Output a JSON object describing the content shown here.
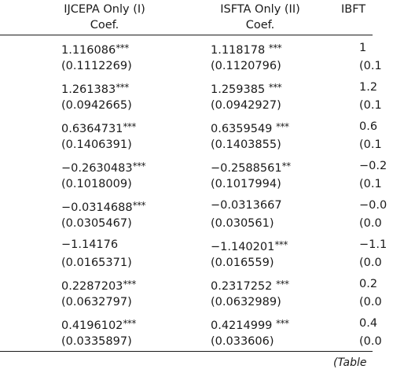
{
  "headers": [
    {
      "title": "IJCEPA Only (I)",
      "sub": "Coef."
    },
    {
      "title": "ISFTA Only (II)",
      "sub": "Coef."
    },
    {
      "title": "IBFT",
      "sub": ""
    }
  ],
  "rows": [
    [
      {
        "coef": "1.116086",
        "stars": "***",
        "se": "(0.1112269)"
      },
      {
        "coef": "1.118178 ",
        "stars": "***",
        "se": "(0.1120796)"
      },
      {
        "coef": "1",
        "stars": "",
        "se": "(0.1"
      }
    ],
    [
      {
        "coef": "1.261383",
        "stars": "***",
        "se": "(0.0942665)"
      },
      {
        "coef": "1.259385 ",
        "stars": "***",
        "se": "(0.0942927)"
      },
      {
        "coef": "1.2",
        "stars": "",
        "se": "(0.1"
      }
    ],
    [
      {
        "coef": "0.6364731",
        "stars": "***",
        "se": "(0.1406391)"
      },
      {
        "coef": "0.6359549 ",
        "stars": "***",
        "se": "(0.1403855)"
      },
      {
        "coef": "0.6",
        "stars": "",
        "se": "(0.1"
      }
    ],
    [
      {
        "coef": "−0.2630483",
        "stars": "***",
        "se": "(0.1018009)"
      },
      {
        "coef": "−0.2588561",
        "stars": "**",
        "se": "(0.1017994)"
      },
      {
        "coef": "−0.2",
        "stars": "",
        "se": "(0.1"
      }
    ],
    [
      {
        "coef": "−0.0314688",
        "stars": "***",
        "se": "(0.0305467)"
      },
      {
        "coef": "−0.0313667",
        "stars": "",
        "se": "(0.030561)"
      },
      {
        "coef": "−0.0",
        "stars": "",
        "se": "(0.0"
      }
    ],
    [
      {
        "coef": "−1.14176",
        "stars": "",
        "se": "(0.0165371)"
      },
      {
        "coef": "−1.140201",
        "stars": "***",
        "se": "(0.016559)"
      },
      {
        "coef": "−1.1",
        "stars": "",
        "se": "(0.0"
      }
    ],
    [
      {
        "coef": "0.2287203",
        "stars": "***",
        "se": "(0.0632797)"
      },
      {
        "coef": "0.2317252 ",
        "stars": "***",
        "se": "(0.0632989)"
      },
      {
        "coef": "0.2",
        "stars": "",
        "se": "(0.0"
      }
    ],
    [
      {
        "coef": "0.4196102",
        "stars": "***",
        "se": "(0.0335897)"
      },
      {
        "coef": "0.4214999 ",
        "stars": "***",
        "se": "(0.033606)"
      },
      {
        "coef": "0.4",
        "stars": "",
        "se": "(0.0"
      }
    ]
  ],
  "footnote": "(Table"
}
